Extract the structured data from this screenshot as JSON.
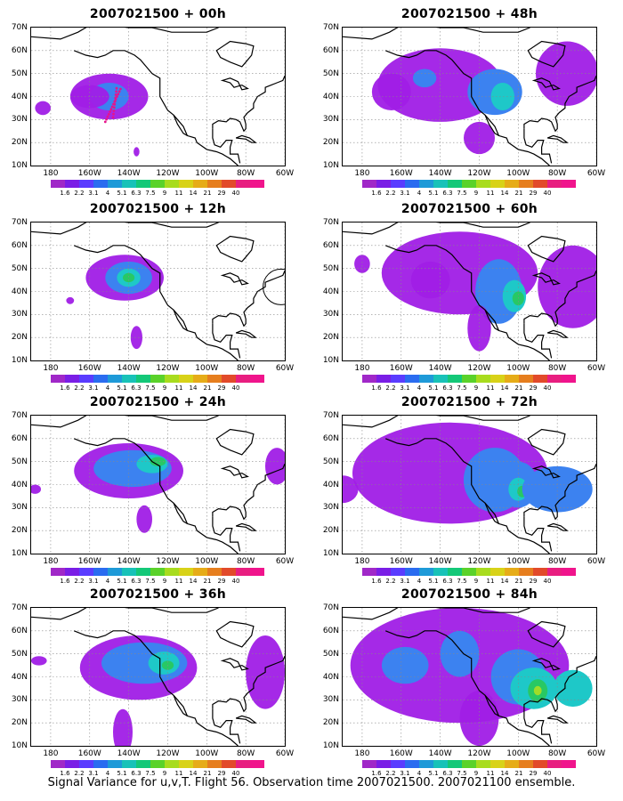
{
  "caption": "Signal Variance for u,v,T. Flight 56. Observation time 2007021500. 2007021100 ensemble.",
  "lat_labels": [
    "70N",
    "60N",
    "50N",
    "40N",
    "30N",
    "20N",
    "10N"
  ],
  "lon_labels": [
    "180",
    "160W",
    "140W",
    "120W",
    "100W",
    "80W",
    "60W"
  ],
  "colorbar": {
    "colors": [
      "#a028c8",
      "#7a1ee6",
      "#5a3cff",
      "#2a6cf0",
      "#1e9ad8",
      "#18c2b8",
      "#14c878",
      "#5ad22a",
      "#a8dc1e",
      "#d8d218",
      "#e6ac18",
      "#e67e1e",
      "#e24a2a",
      "#e81e80",
      "#f0148c"
    ],
    "labels": [
      "1.6",
      "2.2",
      "3.1",
      "4",
      "5.1",
      "6.3",
      "7.5",
      "9",
      "11",
      "14",
      "21",
      "29",
      "40"
    ]
  },
  "map_styles": {
    "purple": "#a01ee6",
    "blue": "#3c82f0",
    "cyan": "#1ec8c8",
    "green": "#28c864",
    "lime": "#a0dc28",
    "magenta": "#e6148c"
  },
  "panels": [
    {
      "title": "2007021500 + 00h",
      "level": 0
    },
    {
      "title": "2007021500 + 48h",
      "level": 4
    },
    {
      "title": "2007021500 + 12h",
      "level": 1
    },
    {
      "title": "2007021500 + 60h",
      "level": 5
    },
    {
      "title": "2007021500 + 24h",
      "level": 2
    },
    {
      "title": "2007021500 + 72h",
      "level": 6
    },
    {
      "title": "2007021500 + 36h",
      "level": 3
    },
    {
      "title": "2007021500 + 84h",
      "level": 7
    }
  ]
}
